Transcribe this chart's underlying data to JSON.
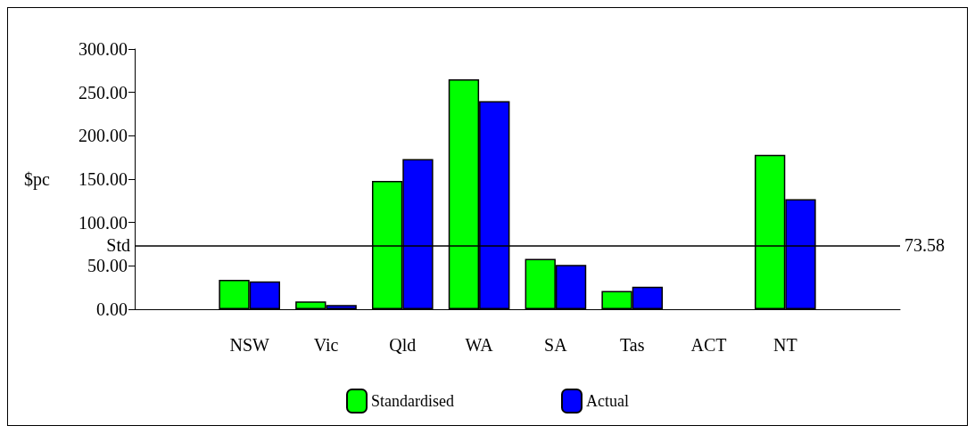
{
  "chart_data": {
    "type": "bar",
    "ylabel": "$pc",
    "categories": [
      null,
      "NSW",
      "Vic",
      "Qld",
      "WA",
      "SA",
      "Tas",
      "ACT",
      "NT",
      null
    ],
    "series": [
      {
        "name": "Standardised",
        "color": "#00ff00",
        "values": [
          null,
          34,
          9,
          148,
          265,
          58,
          21,
          null,
          178,
          null
        ]
      },
      {
        "name": "Actual",
        "color": "#0000ff",
        "values": [
          null,
          32,
          5,
          173,
          240,
          51,
          26,
          null,
          127,
          null
        ]
      }
    ],
    "ylim": [
      0,
      300
    ],
    "yticks": [
      {
        "value": 0,
        "label": "0.00"
      },
      {
        "value": 50,
        "label": "50.00"
      },
      {
        "value": 100,
        "label": "100.00"
      },
      {
        "value": 150,
        "label": "150.00"
      },
      {
        "value": 200,
        "label": "200.00"
      },
      {
        "value": 250,
        "label": "250.00"
      },
      {
        "value": 300,
        "label": "300.00"
      }
    ],
    "ref_lines": [
      {
        "axis": "y",
        "value": 73.58,
        "label": "73.58"
      }
    ],
    "annotations": [
      "Std"
    ],
    "grid": false,
    "legend": "bottom"
  }
}
